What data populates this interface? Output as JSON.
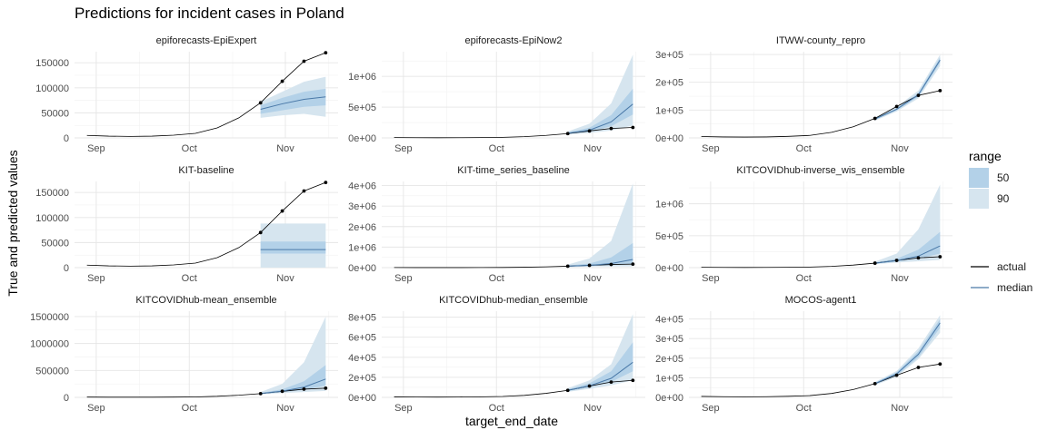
{
  "title": "Predictions for incident cases in Poland",
  "xlabel": "target_end_date",
  "ylabel": "True and predicted values",
  "legend": {
    "range_title": "range",
    "range_items": [
      {
        "label": "50",
        "color": "#b3d1e8"
      },
      {
        "label": "90",
        "color": "#d6e5ef"
      }
    ],
    "line_items": [
      {
        "label": "actual",
        "color": "#000000"
      },
      {
        "label": "median",
        "color": "#4a79a8"
      }
    ]
  },
  "x_ticks": [
    "Sep",
    "Oct",
    "Nov"
  ],
  "chart_data": {
    "type": "line",
    "grid": true,
    "legend_position": "right",
    "history": {
      "dates": [
        "2020-08-29",
        "2020-09-05",
        "2020-09-12",
        "2020-09-19",
        "2020-09-26",
        "2020-10-03",
        "2020-10-10",
        "2020-10-17",
        "2020-10-24",
        "2020-10-31",
        "2020-11-07",
        "2020-11-14"
      ],
      "values": [
        5000,
        3500,
        3000,
        3500,
        5500,
        9000,
        20000,
        40000,
        70000,
        113000,
        153000,
        170000
      ]
    },
    "forecast_dates": [
      "2020-10-24",
      "2020-10-31",
      "2020-11-07",
      "2020-11-14"
    ],
    "actual_points": [
      70000,
      113000,
      153000,
      170000
    ],
    "panels": [
      {
        "title": "epiforecasts-EpiExpert",
        "ylim": [
          0,
          172000
        ],
        "ticks": [
          0,
          50000,
          100000,
          150000
        ],
        "tick_labels": [
          "0",
          "50000",
          "100000",
          "150000"
        ],
        "median": [
          57000,
          68000,
          77000,
          82000
        ],
        "q50": [
          [
            48000,
            65000
          ],
          [
            55000,
            80000
          ],
          [
            62000,
            92000
          ],
          [
            65000,
            98000
          ]
        ],
        "q90": [
          [
            40000,
            72000
          ],
          [
            45000,
            92000
          ],
          [
            48000,
            112000
          ],
          [
            42000,
            122000
          ]
        ]
      },
      {
        "title": "epiforecasts-EpiNow2",
        "ylim": [
          0,
          1400000
        ],
        "ticks": [
          0,
          500000,
          1000000
        ],
        "tick_labels": [
          "0e+00",
          "5e+05",
          "1e+06"
        ],
        "median": [
          75000,
          125000,
          260000,
          550000
        ],
        "q50": [
          [
            65000,
            90000
          ],
          [
            100000,
            165000
          ],
          [
            190000,
            370000
          ],
          [
            380000,
            800000
          ]
        ],
        "q90": [
          [
            55000,
            105000
          ],
          [
            80000,
            230000
          ],
          [
            120000,
            560000
          ],
          [
            200000,
            1350000
          ]
        ]
      },
      {
        "title": "ITWW-county_repro",
        "ylim": [
          0,
          310000
        ],
        "ticks": [
          0,
          100000,
          200000,
          300000
        ],
        "tick_labels": [
          "0e+00",
          "1e+05",
          "2e+05",
          "3e+05"
        ],
        "median": [
          68000,
          103000,
          155000,
          280000
        ],
        "q50": [
          [
            65000,
            71000
          ],
          [
            99000,
            107000
          ],
          [
            148000,
            162000
          ],
          [
            270000,
            290000
          ]
        ],
        "q90": [
          [
            62000,
            74000
          ],
          [
            95000,
            112000
          ],
          [
            142000,
            170000
          ],
          [
            258000,
            300000
          ]
        ]
      },
      {
        "title": "KIT-baseline",
        "ylim": [
          0,
          172000
        ],
        "ticks": [
          0,
          50000,
          100000,
          150000
        ],
        "tick_labels": [
          "0",
          "50000",
          "100000",
          "150000"
        ],
        "median": [
          36000,
          36000,
          36000,
          36000
        ],
        "q50": [
          [
            28000,
            52000
          ],
          [
            28000,
            52000
          ],
          [
            28000,
            52000
          ],
          [
            28000,
            52000
          ]
        ],
        "q90": [
          [
            0,
            88000
          ],
          [
            0,
            88000
          ],
          [
            0,
            88000
          ],
          [
            0,
            88000
          ]
        ]
      },
      {
        "title": "KIT-time_series_baseline",
        "ylim": [
          0,
          4200000
        ],
        "ticks": [
          0,
          1000000,
          2000000,
          3000000,
          4000000
        ],
        "tick_labels": [
          "0e+00",
          "1e+06",
          "2e+06",
          "3e+06",
          "4e+06"
        ],
        "median": [
          70000,
          110000,
          200000,
          400000
        ],
        "q50": [
          [
            50000,
            100000
          ],
          [
            80000,
            200000
          ],
          [
            120000,
            500000
          ],
          [
            180000,
            1200000
          ]
        ],
        "q90": [
          [
            30000,
            150000
          ],
          [
            50000,
            450000
          ],
          [
            60000,
            1300000
          ],
          [
            60000,
            4100000
          ]
        ]
      },
      {
        "title": "KITCOVIDhub-inverse_wis_ensemble",
        "ylim": [
          0,
          1350000
        ],
        "ticks": [
          0,
          500000,
          1000000
        ],
        "tick_labels": [
          "0e+00",
          "5e+05",
          "1e+06"
        ],
        "median": [
          70000,
          110000,
          180000,
          340000
        ],
        "q50": [
          [
            62000,
            80000
          ],
          [
            95000,
            140000
          ],
          [
            140000,
            280000
          ],
          [
            220000,
            560000
          ]
        ],
        "q90": [
          [
            55000,
            95000
          ],
          [
            80000,
            220000
          ],
          [
            100000,
            600000
          ],
          [
            120000,
            1300000
          ]
        ]
      },
      {
        "title": "KITCOVIDhub-mean_ensemble",
        "ylim": [
          0,
          1600000
        ],
        "ticks": [
          0,
          500000,
          1000000,
          1500000
        ],
        "tick_labels": [
          "0",
          "500000",
          "1000000",
          "1500000"
        ],
        "median": [
          72000,
          115000,
          190000,
          340000
        ],
        "q50": [
          [
            63000,
            82000
          ],
          [
            95000,
            150000
          ],
          [
            140000,
            300000
          ],
          [
            220000,
            600000
          ]
        ],
        "q90": [
          [
            55000,
            100000
          ],
          [
            80000,
            250000
          ],
          [
            100000,
            650000
          ],
          [
            120000,
            1500000
          ]
        ]
      },
      {
        "title": "KITCOVIDhub-median_ensemble",
        "ylim": [
          0,
          860000
        ],
        "ticks": [
          0,
          200000,
          400000,
          600000,
          800000
        ],
        "tick_labels": [
          "0e+00",
          "2e+05",
          "4e+05",
          "6e+05",
          "8e+05"
        ],
        "median": [
          70000,
          115000,
          190000,
          350000
        ],
        "q50": [
          [
            62000,
            80000
          ],
          [
            100000,
            140000
          ],
          [
            155000,
            260000
          ],
          [
            260000,
            550000
          ]
        ],
        "q90": [
          [
            55000,
            92000
          ],
          [
            85000,
            170000
          ],
          [
            120000,
            330000
          ],
          [
            170000,
            830000
          ]
        ]
      },
      {
        "title": "MOCOS-agent1",
        "ylim": [
          0,
          440000
        ],
        "ticks": [
          0,
          100000,
          200000,
          300000,
          400000
        ],
        "tick_labels": [
          "0e+00",
          "1e+05",
          "2e+05",
          "3e+05",
          "4e+05"
        ],
        "median": [
          70000,
          120000,
          220000,
          380000
        ],
        "q50": [
          [
            66000,
            74000
          ],
          [
            112000,
            128000
          ],
          [
            205000,
            235000
          ],
          [
            355000,
            400000
          ]
        ],
        "q90": [
          [
            62000,
            78000
          ],
          [
            105000,
            135000
          ],
          [
            195000,
            250000
          ],
          [
            330000,
            420000
          ]
        ]
      }
    ]
  }
}
